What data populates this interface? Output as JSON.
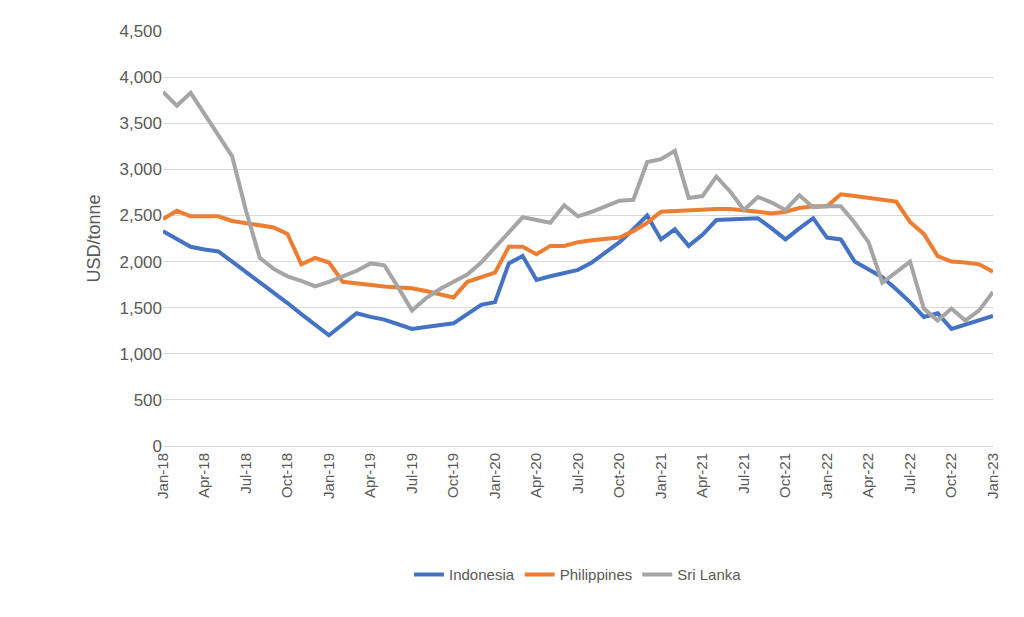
{
  "chart_data": {
    "type": "line",
    "y_label": "USD/tonne",
    "categories": [
      "Jan-18",
      null,
      null,
      "Apr-18",
      null,
      null,
      "Jul-18",
      null,
      null,
      "Oct-18",
      null,
      null,
      "Jan-19",
      null,
      null,
      "Apr-19",
      null,
      null,
      "Jul-19",
      null,
      null,
      "Oct-19",
      null,
      null,
      "Jan-20",
      null,
      null,
      "Apr-20",
      null,
      null,
      "Jul-20",
      null,
      null,
      "Oct-20",
      null,
      null,
      "Jan-21",
      null,
      null,
      "Apr-21",
      null,
      null,
      "Jul-21",
      null,
      null,
      "Oct-21",
      null,
      null,
      "Jan-22",
      null,
      null,
      "Apr-22",
      null,
      null,
      "Jul-22",
      null,
      null,
      "Oct-22",
      null,
      null,
      "Jan-23"
    ],
    "series": [
      {
        "name": "Indonesia",
        "color": "#4472c4",
        "values": [
          2330,
          2240,
          2160,
          2130,
          2110,
          2000,
          1890,
          1780,
          1660,
          1550,
          1430,
          1320,
          1200,
          1320,
          1440,
          1400,
          1370,
          1320,
          1270,
          1290,
          1310,
          1330,
          1430,
          1530,
          1560,
          1980,
          2060,
          1800,
          1840,
          1870,
          1910,
          1990,
          2100,
          2210,
          2350,
          2500,
          2240,
          2350,
          2170,
          2290,
          2450,
          2460,
          2460,
          2470,
          2360,
          2240,
          2360,
          2470,
          2260,
          2240,
          2000,
          1920,
          1830,
          1700,
          1560,
          1400,
          1440,
          1270,
          1320,
          1360,
          1410
        ]
      },
      {
        "name": "Philippines",
        "color": "#ed7d31",
        "values": [
          2460,
          2550,
          2490,
          2490,
          2490,
          2440,
          2420,
          2400,
          2370,
          2300,
          1970,
          2040,
          1990,
          1780,
          1760,
          1740,
          1730,
          1720,
          1710,
          1680,
          1640,
          1610,
          1780,
          1830,
          1880,
          2160,
          2160,
          2080,
          2170,
          2170,
          2210,
          2230,
          2240,
          2260,
          2330,
          2420,
          2540,
          2550,
          2560,
          2570,
          2570,
          2570,
          2560,
          2540,
          2520,
          2540,
          2580,
          2600,
          2600,
          2730,
          2710,
          2690,
          2670,
          2650,
          2430,
          2300,
          2060,
          2000,
          1990,
          1970,
          1890
        ]
      },
      {
        "name": "Sri Lanka",
        "color": "#a5a5a5",
        "values": [
          3840,
          3690,
          3830,
          3600,
          3370,
          3140,
          2550,
          2040,
          1920,
          1840,
          1790,
          1730,
          1780,
          1840,
          1900,
          1980,
          1960,
          1720,
          1470,
          1600,
          1700,
          1780,
          1860,
          1990,
          2150,
          2310,
          2480,
          2450,
          2420,
          2610,
          2490,
          2540,
          2600,
          2660,
          2670,
          3080,
          3110,
          3200,
          2690,
          2710,
          2920,
          2760,
          2560,
          2700,
          2640,
          2560,
          2720,
          2590,
          2600,
          2600,
          2420,
          2210,
          1770,
          1880,
          2000,
          1490,
          1360,
          1490,
          1360,
          1470,
          1670
        ]
      }
    ],
    "ylim": [
      0,
      4500
    ],
    "yticks": [
      0,
      500,
      {
        "value": 1000,
        "label": "1,000"
      },
      {
        "value": 1500,
        "label": "1,500"
      },
      {
        "value": 2000,
        "label": "2,000"
      },
      {
        "value": 2500,
        "label": "2,500"
      },
      {
        "value": 3000,
        "label": "3,000"
      },
      {
        "value": 3500,
        "label": "3,500"
      },
      {
        "value": 4000,
        "label": "4,000"
      },
      {
        "value": 4500,
        "label": "4,500"
      }
    ],
    "grid": true,
    "legend": "bottom"
  }
}
